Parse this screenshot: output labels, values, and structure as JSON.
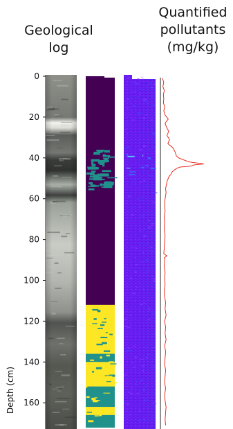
{
  "headers": {
    "geological_log": [
      "Geological",
      "log"
    ],
    "pollutants": [
      "Quantified",
      "pollutants",
      "(mg/kg)"
    ]
  },
  "chart_data": {
    "type": "line",
    "ylabel": "Depth (cm)",
    "ylim": [
      0,
      172
    ],
    "y_inverted": true,
    "yticks": [
      0,
      20,
      40,
      60,
      80,
      100,
      120,
      140,
      160
    ],
    "panels": [
      "core-photograph",
      "classified-image",
      "hyperspectral-map",
      "pollutant-profile"
    ],
    "classification": {
      "colors": [
        "#440154",
        "#21918c",
        "#fde725"
      ],
      "segments": [
        {
          "from": 0,
          "to": 112,
          "class": 0
        },
        {
          "from": 112,
          "to": 136,
          "class": 2
        },
        {
          "from": 136,
          "to": 140,
          "class": 1
        },
        {
          "from": 140,
          "to": 152,
          "class": 2
        },
        {
          "from": 152,
          "to": 162,
          "class": 1
        },
        {
          "from": 162,
          "to": 166,
          "class": 2
        },
        {
          "from": 166,
          "to": 172,
          "class": 1
        }
      ],
      "speckles": [
        {
          "from": 36,
          "to": 47,
          "class": 1
        },
        {
          "from": 47,
          "to": 55,
          "class": 1
        }
      ]
    },
    "profile": {
      "color": "#e8170b",
      "depth": [
        1,
        3,
        5,
        7,
        9,
        11,
        13,
        15,
        17,
        19,
        21,
        23,
        25,
        27,
        29,
        31,
        33,
        35,
        37,
        39,
        40,
        41,
        42,
        42.5,
        43,
        43.5,
        44,
        44.5,
        45,
        46,
        47,
        48,
        49,
        51,
        53,
        55,
        57,
        60,
        63,
        66,
        69,
        72,
        75,
        78,
        81,
        84,
        87,
        88,
        89,
        90,
        93,
        96,
        99,
        102,
        105,
        108,
        111,
        114,
        117,
        120,
        123,
        126,
        129,
        132,
        135,
        138,
        141,
        144,
        147,
        150,
        153,
        156,
        159,
        162,
        165,
        168,
        171
      ],
      "value": [
        0.3,
        0.6,
        0.4,
        0.7,
        0.5,
        0.6,
        0.5,
        0.8,
        0.6,
        0.9,
        1.6,
        0.9,
        1.2,
        1.7,
        1.3,
        1.9,
        1.5,
        2.6,
        3.1,
        3.4,
        3.9,
        5.0,
        6.3,
        8.0,
        9.5,
        7.2,
        6.8,
        4.2,
        3.6,
        2.9,
        2.4,
        2.2,
        1.8,
        1.4,
        1.2,
        1.0,
        1.1,
        0.9,
        0.8,
        0.9,
        0.7,
        0.8,
        0.7,
        0.9,
        0.8,
        0.7,
        0.6,
        1.3,
        0.7,
        0.8,
        0.7,
        0.9,
        0.8,
        0.9,
        0.7,
        0.8,
        1.0,
        0.9,
        1.1,
        0.8,
        1.0,
        0.9,
        1.1,
        0.8,
        1.0,
        0.9,
        0.8,
        1.0,
        0.9,
        0.8,
        1.0,
        0.8,
        0.9,
        1.1,
        1.0,
        0.9,
        1.0
      ]
    }
  }
}
